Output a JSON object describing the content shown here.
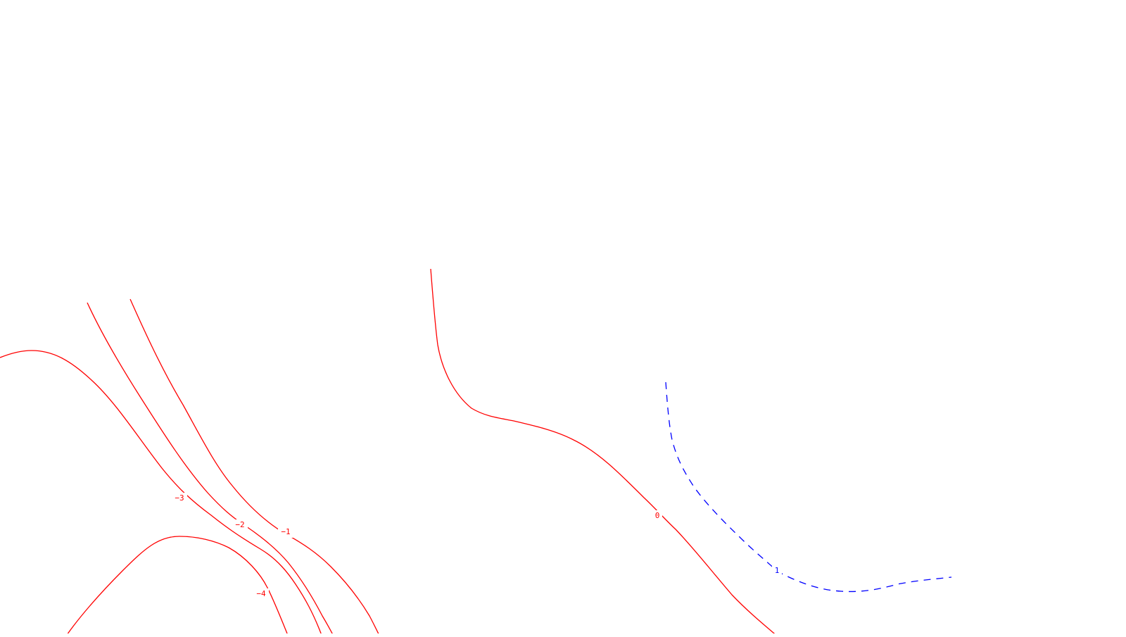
{
  "chart_data": {
    "type": "contour",
    "title": "",
    "xlabel": "",
    "ylabel": "",
    "grid": false,
    "legend": "none",
    "colors": {
      "negative": "#ff0000",
      "zero": "#ff0000",
      "positive": "#0000ff",
      "background": "#ffffff"
    },
    "levels": [
      {
        "value": -4,
        "label": "−4",
        "style": "solid",
        "color": "#ff0000"
      },
      {
        "value": -3,
        "label": "−3",
        "style": "solid",
        "color": "#ff0000"
      },
      {
        "value": -2,
        "label": "−2",
        "style": "solid",
        "color": "#ff0000"
      },
      {
        "value": -1,
        "label": "−1",
        "style": "solid",
        "color": "#ff0000"
      },
      {
        "value": 0,
        "label": "0",
        "style": "solid",
        "color": "#ff0000"
      },
      {
        "value": 1,
        "label": "1",
        "style": "dashed",
        "color": "#0000ff"
      }
    ]
  }
}
